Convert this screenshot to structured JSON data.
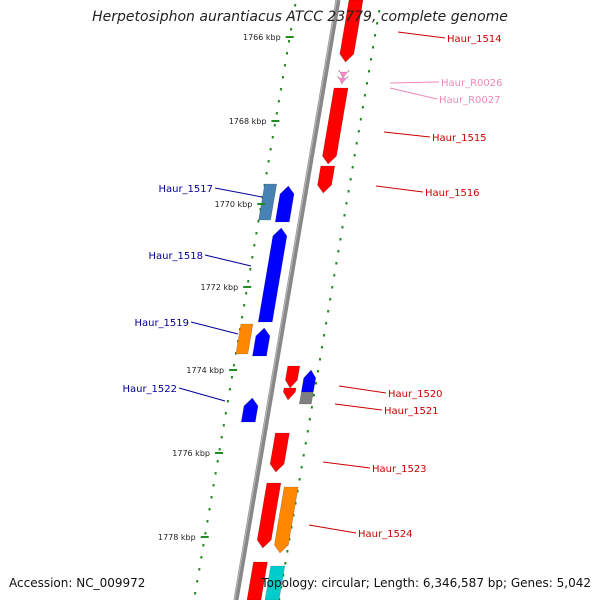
{
  "title": "Herpetosiphon aurantiacus ATCC 23779, complete genome",
  "accession": "Accession: NC_009972",
  "stats": "Topology: circular; Length: 6,346,587 bp; Genes: 5,042",
  "colors": {
    "forward_cds": "#ff0000",
    "reverse_cds": "#0000ff",
    "rna": "#ff88cc",
    "label_forward": "#cc0000",
    "label_reverse": "#000099",
    "label_rna": "#ee88bb",
    "tick": "#228b22",
    "backbone": "#888888",
    "orange": "#ff8800",
    "steel": "#4682b4",
    "gray": "#808080",
    "cyan": "#00cccc"
  },
  "kbp_ticks": [
    {
      "label": "1766 kbp"
    },
    {
      "label": "1768 kbp"
    },
    {
      "label": "1770 kbp"
    },
    {
      "label": "1772 kbp"
    },
    {
      "label": "1774 kbp"
    },
    {
      "label": "1776 kbp"
    },
    {
      "label": "1778 kbp"
    }
  ],
  "genes": [
    {
      "name": "Haur_1514",
      "strand": "forward"
    },
    {
      "name": "Haur_R0026",
      "strand": "forward",
      "kind": "rna"
    },
    {
      "name": "Haur_R0027",
      "strand": "forward",
      "kind": "rna"
    },
    {
      "name": "Haur_1515",
      "strand": "forward"
    },
    {
      "name": "Haur_1516",
      "strand": "forward"
    },
    {
      "name": "Haur_1517",
      "strand": "reverse"
    },
    {
      "name": "Haur_1518",
      "strand": "reverse"
    },
    {
      "name": "Haur_1519",
      "strand": "reverse"
    },
    {
      "name": "Haur_1520",
      "strand": "forward"
    },
    {
      "name": "Haur_1521",
      "strand": "forward"
    },
    {
      "name": "Haur_1522",
      "strand": "reverse"
    },
    {
      "name": "Haur_1523",
      "strand": "forward"
    },
    {
      "name": "Haur_1524",
      "strand": "forward"
    }
  ]
}
